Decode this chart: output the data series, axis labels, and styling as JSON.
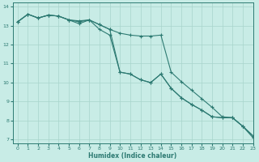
{
  "xlabel": "Humidex (Indice chaleur)",
  "ylabel": "",
  "bg_color": "#c8ece6",
  "grid_color": "#a8d4cc",
  "line_color": "#2d7a72",
  "xlim": [
    -0.5,
    23
  ],
  "ylim": [
    6.8,
    14.2
  ],
  "yticks": [
    7,
    8,
    9,
    10,
    11,
    12,
    13,
    14
  ],
  "xticks": [
    0,
    1,
    2,
    3,
    4,
    5,
    6,
    7,
    8,
    9,
    10,
    11,
    12,
    13,
    14,
    15,
    16,
    17,
    18,
    19,
    20,
    21,
    22,
    23
  ],
  "series1_x": [
    0,
    1,
    2,
    3,
    4,
    5,
    6,
    7,
    8,
    9,
    10,
    11,
    12,
    13,
    14,
    15,
    16,
    17,
    18,
    19,
    20,
    21,
    22,
    23
  ],
  "series1_y": [
    13.2,
    13.6,
    13.4,
    13.55,
    13.5,
    13.3,
    13.25,
    13.3,
    13.05,
    12.8,
    12.6,
    12.5,
    12.45,
    12.45,
    12.5,
    10.55,
    10.05,
    9.6,
    9.15,
    8.7,
    8.2,
    8.15,
    7.7,
    7.1
  ],
  "series2_x": [
    0,
    1,
    2,
    3,
    4,
    5,
    6,
    7,
    8,
    9,
    10,
    11,
    12,
    13,
    14,
    15,
    16,
    17,
    18,
    19,
    20,
    21,
    22,
    23
  ],
  "series2_y": [
    13.2,
    13.6,
    13.4,
    13.55,
    13.5,
    13.3,
    13.1,
    13.3,
    12.8,
    12.5,
    10.55,
    10.45,
    10.15,
    10.0,
    10.45,
    9.7,
    9.2,
    8.85,
    8.55,
    8.2,
    8.15,
    8.15,
    7.7,
    7.2
  ],
  "series3_x": [
    0,
    1,
    2,
    3,
    4,
    5,
    6,
    7,
    8,
    9,
    10,
    11,
    12,
    13,
    14,
    15,
    16,
    17,
    18,
    19,
    20,
    21,
    22,
    23
  ],
  "series3_y": [
    13.2,
    13.6,
    13.4,
    13.55,
    13.5,
    13.3,
    13.2,
    13.3,
    13.05,
    12.8,
    10.55,
    10.45,
    10.15,
    10.0,
    10.45,
    9.7,
    9.2,
    8.85,
    8.55,
    8.2,
    8.15,
    8.15,
    7.7,
    7.2
  ]
}
